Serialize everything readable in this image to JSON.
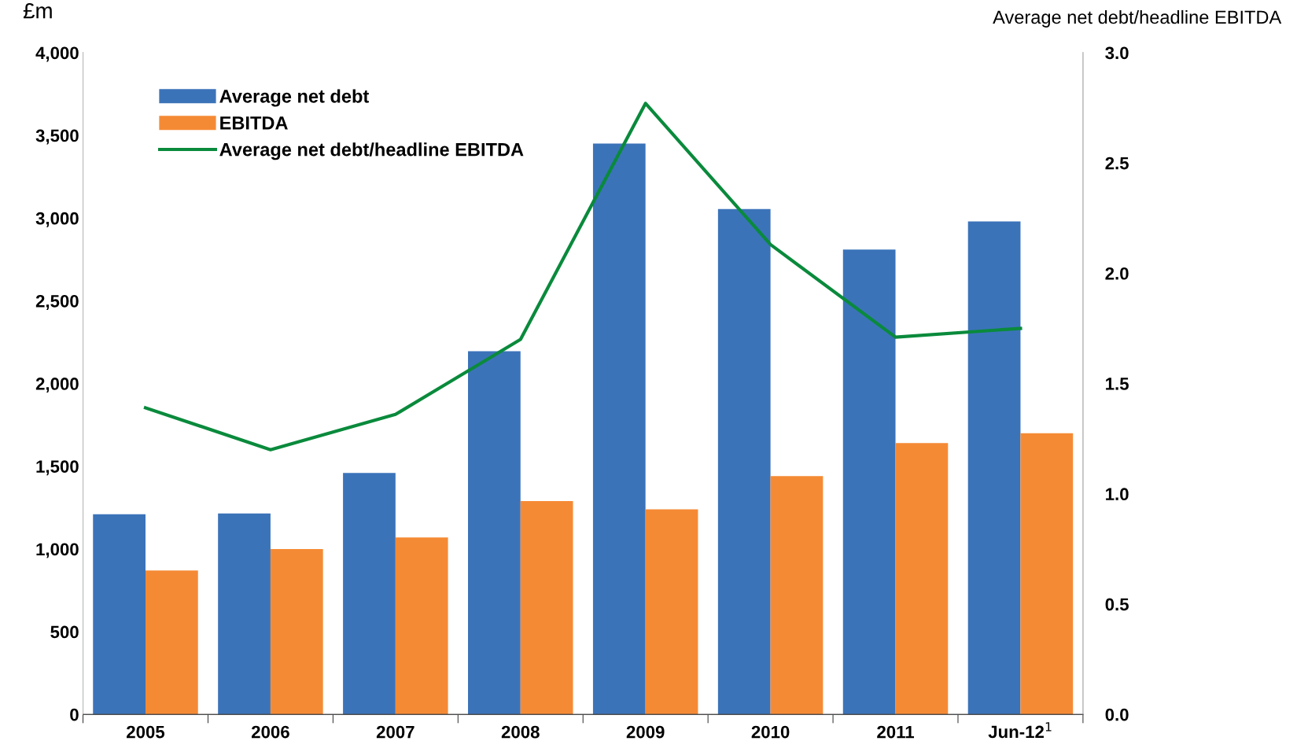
{
  "chart_data": {
    "type": "bar",
    "ylabel": "£m",
    "y2label": "Average net debt/headline EBITDA",
    "categories": [
      "2005",
      "2006",
      "2007",
      "2008",
      "2009",
      "2010",
      "2011",
      "Jun-12$^{1}$"
    ],
    "series": [
      {
        "name": "Average net debt",
        "color": "#3b73b9",
        "values": [
          1210,
          1215,
          1460,
          2195,
          3450,
          3055,
          2810,
          2980
        ]
      },
      {
        "name": "EBITDA",
        "color": "#f58a35",
        "values": [
          870,
          1000,
          1070,
          1290,
          1240,
          1440,
          1640,
          1700
        ]
      },
      {
        "name": "Average net debt/headline EBITDA",
        "type": "line",
        "axis": "y2",
        "color": "#0a8a3c",
        "values": [
          1.39,
          1.2,
          1.36,
          1.7,
          2.77,
          2.13,
          1.71,
          1.75
        ]
      }
    ],
    "ylim": [
      0,
      4000
    ],
    "yticks": [
      0,
      500,
      {
        "value": 1000,
        "label": "1,000"
      },
      {
        "value": 1500,
        "label": "1,500"
      },
      {
        "value": 2000,
        "label": "2,000"
      },
      {
        "value": 2500,
        "label": "2,500"
      },
      {
        "value": 3000,
        "label": "3,000"
      },
      {
        "value": 3500,
        "label": "3,500"
      },
      {
        "value": 4000,
        "label": "4,000"
      }
    ],
    "y2lim": [
      0,
      3
    ],
    "y2ticks": [
      {
        "value": 0,
        "label": "0.0"
      },
      {
        "value": 0.5,
        "label": "0.5"
      },
      {
        "value": 1,
        "label": "1.0"
      },
      {
        "value": 1.5,
        "label": "1.5"
      },
      {
        "value": 2,
        "label": "2.0"
      },
      {
        "value": 2.5,
        "label": "2.5"
      },
      {
        "value": 3,
        "label": "3.0"
      }
    ],
    "grid": false,
    "legend": "top left",
    "marker": "none",
    "line_style": "solid"
  }
}
